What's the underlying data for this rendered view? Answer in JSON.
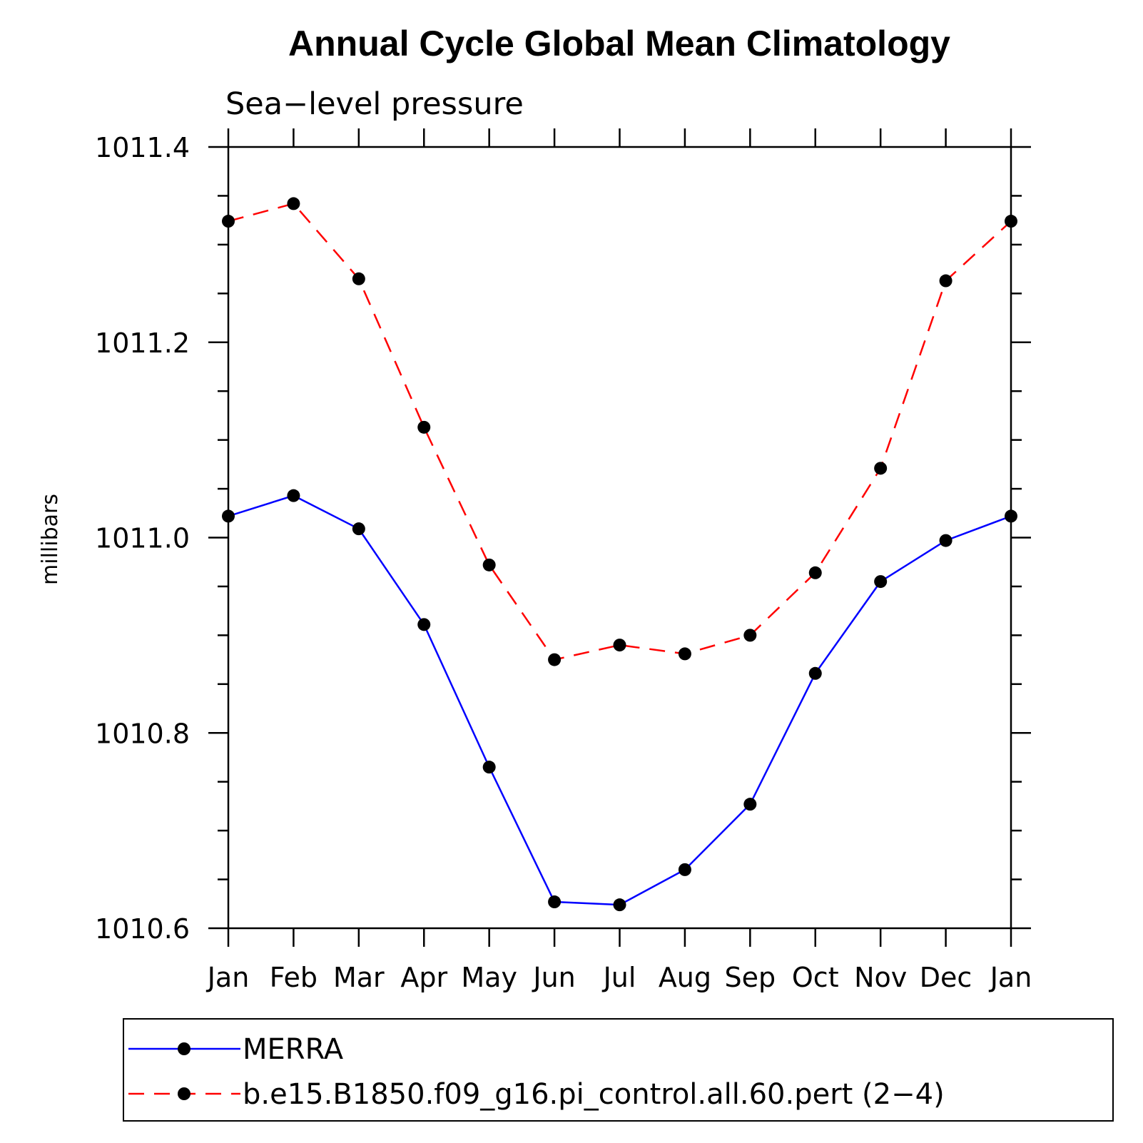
{
  "chart_data": {
    "type": "line",
    "title": "Annual Cycle Global Mean Climatology",
    "subtitle": "Sea−level pressure",
    "ylabel": "millibars",
    "xlabel": "",
    "categories": [
      "Jan",
      "Feb",
      "Mar",
      "Apr",
      "May",
      "Jun",
      "Jul",
      "Aug",
      "Sep",
      "Oct",
      "Nov",
      "Dec",
      "Jan"
    ],
    "ylim": [
      1010.6,
      1011.4
    ],
    "yticks": [
      "1010.6",
      "1010.8",
      "1011.0",
      "1011.2",
      "1011.4"
    ],
    "grid": false,
    "legend_position": "bottom",
    "series": [
      {
        "name": "MERRA",
        "color": "#0000ff",
        "dash": "solid",
        "marker": "circle",
        "values": [
          1011.022,
          1011.043,
          1011.009,
          1010.911,
          1010.765,
          1010.627,
          1010.624,
          1010.66,
          1010.727,
          1010.861,
          1010.955,
          1010.997,
          1011.022
        ]
      },
      {
        "name": "b.e15.B1850.f09_g16.pi_control.all.60.pert (2−4)",
        "color": "#ff0000",
        "dash": "dashed",
        "marker": "circle",
        "values": [
          1011.324,
          1011.342,
          1011.265,
          1011.113,
          1010.972,
          1010.875,
          1010.89,
          1010.881,
          1010.9,
          1010.964,
          1011.071,
          1011.263,
          1011.324
        ]
      }
    ]
  }
}
